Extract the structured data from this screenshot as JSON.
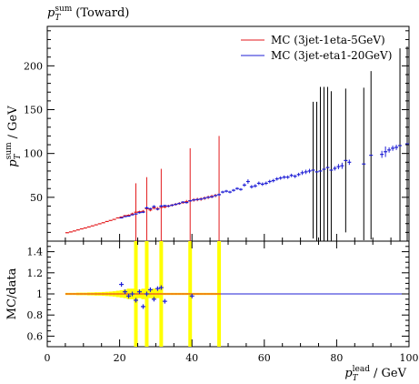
{
  "chart_data": {
    "type": "scatter",
    "title": "p_T^sum (Toward)",
    "title_base": "p",
    "title_sub": "T",
    "title_sup": "sum",
    "title_rest": "(Toward)",
    "ylabel_base": "p",
    "ylabel_sub": "T",
    "ylabel_sup": "sum",
    "ylabel_rest": "/ GeV",
    "xlabel_base": "p",
    "xlabel_sub": "T",
    "xlabel_sup": "lead",
    "xlabel_rest": "/ GeV",
    "ratio_ylabel": "MC/data",
    "xlim": [
      0,
      100
    ],
    "ylim": [
      0,
      245
    ],
    "ratio_ylim": [
      0.5,
      1.5
    ],
    "xticks": [
      "0",
      "20",
      "40",
      "60",
      "80",
      "100"
    ],
    "yticks": [
      "50",
      "100",
      "150",
      "200"
    ],
    "ratio_yticks": [
      "0.6",
      "0.8",
      "1",
      "1.2",
      "1.4"
    ],
    "legend": {
      "position": "top-right"
    },
    "series": [
      {
        "name": "MC (3jet-1eta-5GeV)",
        "color": "#e31a1c",
        "x": [
          5.5,
          6.5,
          7.5,
          8.5,
          9.5,
          10.5,
          11.5,
          12.5,
          13.5,
          14.5,
          15.5,
          16.5,
          17.5,
          18.5,
          19.5,
          20.5,
          21.5,
          22.5,
          23.5,
          24.5,
          25.5,
          26.5,
          27.5,
          28.5,
          29.5,
          30.5,
          31.5,
          32.5,
          33.5,
          34.5,
          35.5,
          36.5,
          37.5,
          38.5,
          39.5,
          40.5,
          41.5,
          42.5,
          43.5,
          44.5,
          45.5,
          46.5,
          47.5
        ],
        "y": [
          9.6,
          10.5,
          11.6,
          12.8,
          14,
          15,
          16.2,
          17.4,
          18.6,
          19.8,
          21,
          22.4,
          23.6,
          24.8,
          26.5,
          27.5,
          29,
          29.5,
          31,
          33,
          33.5,
          34,
          37,
          35.5,
          38,
          37,
          38.5,
          39,
          40,
          41,
          42,
          43,
          44,
          45,
          46,
          47,
          47.5,
          48,
          49,
          50,
          51,
          52,
          53
        ],
        "yerr": [
          0.3,
          0.3,
          0.3,
          0.3,
          0.3,
          0.3,
          0.3,
          0.3,
          0.3,
          0.3,
          0.3,
          0.3,
          0.3,
          0.3,
          0.4,
          0.5,
          0.8,
          1,
          1.5,
          33,
          1.2,
          1.5,
          36,
          1.5,
          2,
          2,
          44,
          1.5,
          1.5,
          1.5,
          1.5,
          1.5,
          1.5,
          2,
          60,
          2,
          2,
          2,
          2,
          2,
          2,
          2,
          67
        ]
      },
      {
        "name": "MC (3jet-eta1-20GeV)",
        "color": "#1f1fd6",
        "x": [
          20.5,
          21.5,
          22.5,
          23.5,
          24.5,
          25.5,
          26.5,
          27.5,
          28.5,
          29.5,
          30.5,
          31.5,
          32.5,
          33.5,
          34.5,
          35.5,
          36.5,
          37.5,
          38.5,
          39.5,
          40.5,
          41.5,
          42.5,
          43.5,
          44.5,
          45.5,
          46.5,
          47.5,
          48.5,
          49.5,
          50.5,
          51.5,
          52.5,
          53.5,
          54.5,
          55.5,
          56.5,
          57.5,
          58.5,
          59.5,
          60.5,
          61.5,
          62.5,
          63.5,
          64.5,
          65.5,
          66.5,
          67.5,
          68.5,
          69.5,
          70.5,
          71.5,
          72.5,
          73.5,
          74.5,
          75.5,
          76.5,
          77.5,
          78.5,
          79.5,
          80.5,
          81.5,
          82.5,
          83.5,
          87.5,
          89.5,
          92.5,
          93.5,
          94.5,
          95.5,
          96.5,
          97.5,
          99.5
        ],
        "y": [
          26.5,
          28,
          28.5,
          30,
          31,
          32.5,
          33,
          38,
          37,
          39.5,
          36.5,
          40,
          40.5,
          40,
          41,
          42,
          43,
          44.5,
          44,
          46,
          47,
          47.5,
          48,
          49,
          50,
          50.5,
          52,
          53,
          56,
          57,
          56,
          58,
          60,
          59,
          64,
          68,
          62,
          63,
          66,
          65,
          66,
          68,
          69,
          71,
          72,
          73,
          73,
          75,
          74,
          76,
          78,
          79,
          80,
          81,
          79,
          80,
          82,
          84,
          81,
          83,
          85,
          86,
          92,
          90,
          88,
          98,
          99,
          102,
          104,
          106,
          107,
          109,
          111
        ],
        "yerr": [
          0.5,
          0.5,
          0.5,
          0.5,
          0.8,
          1,
          1,
          1.5,
          1,
          1.5,
          1,
          1.5,
          1,
          1,
          1,
          1,
          1,
          1,
          1,
          1,
          1,
          1,
          1,
          1,
          1,
          1,
          1,
          1.5,
          1.5,
          1.5,
          1.5,
          1.5,
          1.5,
          1.5,
          2,
          2.5,
          2,
          2,
          2,
          2,
          2,
          2,
          2,
          2,
          2,
          2,
          2,
          2,
          2,
          2,
          2.5,
          2.5,
          2.5,
          78,
          80,
          96,
          94,
          92,
          90,
          2.5,
          3,
          3.5,
          82,
          3,
          87,
          96,
          4,
          6,
          3,
          3,
          3,
          111,
          111
        ]
      }
    ],
    "ratio_series": [
      {
        "name": "MC (3jet-1eta-5GeV)",
        "color": "#e31a1c",
        "band_color": "#ffff00",
        "x": [
          5.5,
          6.5,
          7.5,
          8.5,
          9.5,
          10.5,
          11.5,
          12.5,
          13.5,
          14.5,
          15.5,
          16.5,
          17.5,
          18.5,
          19.5,
          20.5,
          21.5,
          22.5,
          23.5,
          24.5,
          25.5,
          26.5,
          27.5,
          28.5,
          29.5,
          30.5,
          31.5,
          32.5,
          33.5,
          34.5,
          35.5,
          36.5,
          37.5,
          38.5,
          39.5,
          40.5,
          41.5,
          42.5,
          43.5,
          44.5,
          45.5,
          46.5,
          47.5
        ],
        "yerr": [
          0.01,
          0.01,
          0.01,
          0.012,
          0.012,
          0.012,
          0.014,
          0.014,
          0.016,
          0.016,
          0.018,
          0.02,
          0.022,
          0.025,
          0.03,
          0.035,
          0.04,
          0.05,
          0.05,
          1.0,
          0.04,
          0.05,
          1.0,
          0.04,
          0.05,
          0.04,
          1.0,
          0.01,
          0.01,
          0.01,
          0.01,
          0.01,
          0.01,
          0.01,
          1.0,
          0.01,
          0.01,
          0.01,
          0.01,
          0.01,
          0.01,
          0.01,
          1.0
        ]
      },
      {
        "name": "MC (3jet-eta1-20GeV)",
        "color": "#1f1fd6",
        "x": [
          20.5,
          21.5,
          22.5,
          23.5,
          24.5,
          25.5,
          26.5,
          27.5,
          28.5,
          29.5,
          30.5,
          31.5,
          32.5,
          40
        ],
        "y": [
          1.09,
          1.02,
          0.98,
          1.0,
          0.94,
          1.02,
          0.88,
          1.0,
          1.04,
          0.95,
          1.05,
          1.06,
          0.93,
          0.98
        ]
      }
    ]
  }
}
